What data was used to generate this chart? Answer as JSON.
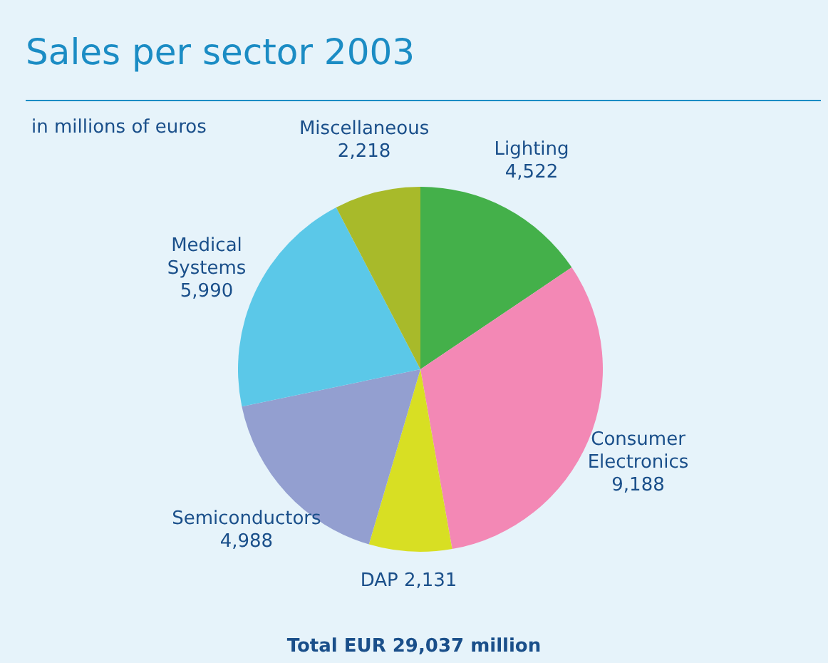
{
  "chart_data": {
    "type": "pie",
    "title": "Sales per sector 2003",
    "subtitle": "in millions of euros",
    "categories": [
      "Lighting",
      "Consumer Electronics",
      "DAP",
      "Semiconductors",
      "Medical Systems",
      "Miscellaneous"
    ],
    "values": [
      4522,
      9188,
      2131,
      4988,
      5990,
      2218
    ],
    "value_labels": [
      "4,522",
      "9,188",
      "2,131",
      "4,988",
      "5,990",
      "2,218"
    ],
    "colors": [
      "#44b04a",
      "#f388b5",
      "#d8df23",
      "#939fd0",
      "#5bc8e8",
      "#a8ba2a"
    ],
    "annotations": [
      "Total EUR 29,037 million"
    ]
  }
}
